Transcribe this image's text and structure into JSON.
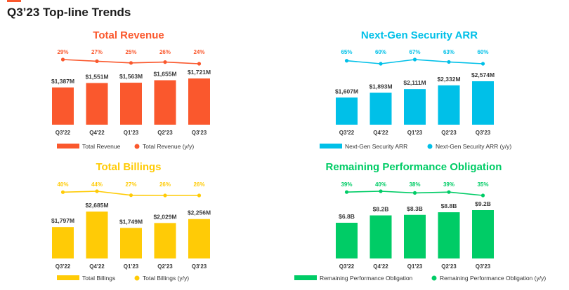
{
  "page": {
    "title": "Q3’23 Top-line Trends",
    "accent_color": "#FA582D"
  },
  "chart_data": [
    {
      "type": "bar",
      "title": "Total Revenue",
      "color": "#FA582D",
      "categories": [
        "Q3'22",
        "Q4'22",
        "Q1'23",
        "Q2'23",
        "Q3'23"
      ],
      "values": [
        1387,
        1551,
        1563,
        1655,
        1721
      ],
      "value_labels": [
        "$1,387M",
        "$1,551M",
        "$1,563M",
        "$1,655M",
        "$1,721M"
      ],
      "growth_values": [
        29,
        27,
        25,
        26,
        24
      ],
      "growth_labels": [
        "29%",
        "27%",
        "25%",
        "26%",
        "24%"
      ],
      "legend_bar": "Total Revenue",
      "legend_line": "Total Revenue (y/y)"
    },
    {
      "type": "bar",
      "title": "Next-Gen Security ARR",
      "color": "#00C0E8",
      "categories": [
        "Q3'22",
        "Q4'22",
        "Q1'23",
        "Q2'23",
        "Q3'23"
      ],
      "values": [
        1607,
        1893,
        2111,
        2332,
        2574
      ],
      "value_labels": [
        "$1,607M",
        "$1,893M",
        "$2,111M",
        "$2,332M",
        "$2,574M"
      ],
      "growth_values": [
        65,
        60,
        67,
        63,
        60
      ],
      "growth_labels": [
        "65%",
        "60%",
        "67%",
        "63%",
        "60%"
      ],
      "legend_bar": "Next-Gen Security ARR",
      "legend_line": "Next-Gen Security ARR (y/y)"
    },
    {
      "type": "bar",
      "title": "Total Billings",
      "color": "#FFCB06",
      "categories": [
        "Q3'22",
        "Q4'22",
        "Q1'23",
        "Q2'23",
        "Q3'23"
      ],
      "values": [
        1797,
        2685,
        1749,
        2029,
        2256
      ],
      "value_labels": [
        "$1,797M",
        "$2,685M",
        "$1,749M",
        "$2,029M",
        "$2,256M"
      ],
      "growth_values": [
        40,
        44,
        27,
        26,
        26
      ],
      "growth_labels": [
        "40%",
        "44%",
        "27%",
        "26%",
        "26%"
      ],
      "legend_bar": "Total Billings",
      "legend_line": "Total Billings (y/y)"
    },
    {
      "type": "bar",
      "title": "Remaining Performance Obligation",
      "color": "#00CC66",
      "categories": [
        "Q3'22",
        "Q4'22",
        "Q1'23",
        "Q2'23",
        "Q3'23"
      ],
      "values": [
        6.8,
        8.2,
        8.3,
        8.8,
        9.2
      ],
      "value_labels": [
        "$6.8B",
        "$8.2B",
        "$8.3B",
        "$8.8B",
        "$9.2B"
      ],
      "growth_values": [
        39,
        40,
        38,
        39,
        35
      ],
      "growth_labels": [
        "39%",
        "40%",
        "38%",
        "39%",
        "35%"
      ],
      "legend_bar": "Remaining Performance Obligation",
      "legend_line": "Remaining Performance Obligation (y/y)"
    }
  ]
}
